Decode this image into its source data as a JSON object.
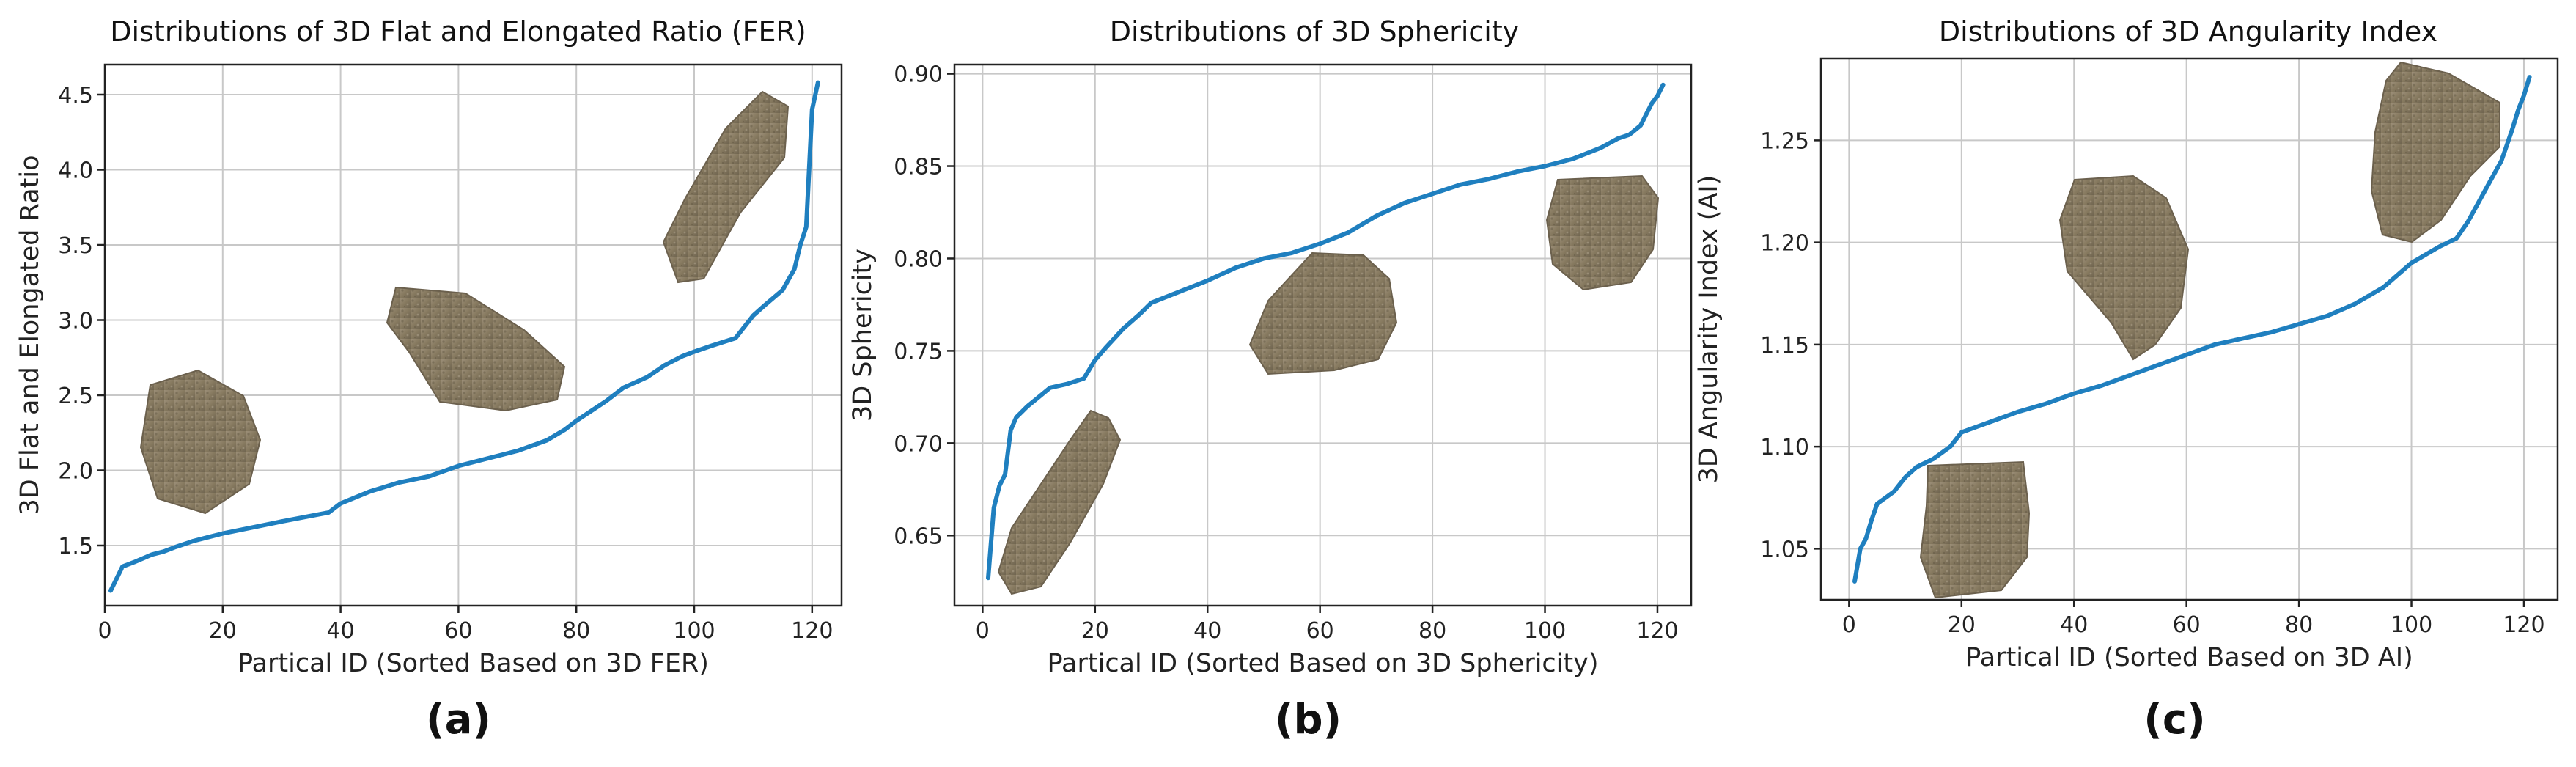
{
  "chart_data": [
    {
      "type": "line",
      "title": "Distributions of 3D Flat and Elongated Ratio (FER)",
      "xlabel": "Partical ID (Sorted Based on 3D FER)",
      "ylabel": "3D Flat and Elongated Ratio",
      "caption": "(a)",
      "xlim": [
        0,
        125
      ],
      "ylim": [
        1.1,
        4.7
      ],
      "xticks": [
        0,
        20,
        40,
        60,
        80,
        100,
        120
      ],
      "yticks": [
        1.5,
        2.0,
        2.5,
        3.0,
        3.5,
        4.0,
        4.5
      ],
      "ytick_labels": [
        "1.5",
        "2.0",
        "2.5",
        "3.0",
        "3.5",
        "4.0",
        "4.5"
      ],
      "grid": true,
      "color": "#1f7fbf",
      "series": [
        {
          "name": "3D FER",
          "x": [
            1,
            2,
            3,
            5,
            8,
            10,
            12,
            15,
            18,
            20,
            25,
            30,
            38,
            40,
            45,
            50,
            55,
            60,
            65,
            70,
            75,
            78,
            80,
            85,
            88,
            92,
            95,
            98,
            100,
            103,
            107,
            110,
            112,
            115,
            117,
            118,
            119,
            120,
            121
          ],
          "y": [
            1.2,
            1.28,
            1.36,
            1.39,
            1.44,
            1.46,
            1.49,
            1.53,
            1.56,
            1.58,
            1.62,
            1.66,
            1.72,
            1.78,
            1.86,
            1.92,
            1.96,
            2.03,
            2.08,
            2.13,
            2.2,
            2.27,
            2.33,
            2.46,
            2.55,
            2.62,
            2.7,
            2.76,
            2.79,
            2.83,
            2.88,
            3.03,
            3.1,
            3.2,
            3.34,
            3.5,
            3.62,
            4.4,
            4.58
          ]
        }
      ]
    },
    {
      "type": "line",
      "title": "Distributions of 3D Sphericity",
      "xlabel": "Partical ID (Sorted Based on 3D Sphericity)",
      "ylabel": "3D Sphericity",
      "caption": "(b)",
      "xlim": [
        -5,
        126
      ],
      "ylim": [
        0.612,
        0.905
      ],
      "xticks": [
        0,
        20,
        40,
        60,
        80,
        100,
        120
      ],
      "yticks": [
        0.65,
        0.7,
        0.75,
        0.8,
        0.85,
        0.9
      ],
      "ytick_labels": [
        "0.65",
        "0.70",
        "0.75",
        "0.80",
        "0.85",
        "0.90"
      ],
      "grid": true,
      "color": "#1f7fbf",
      "series": [
        {
          "name": "3D Sphericity",
          "x": [
            1,
            2,
            3,
            4,
            5,
            6,
            8,
            10,
            12,
            15,
            18,
            20,
            22,
            25,
            28,
            30,
            35,
            40,
            45,
            50,
            55,
            60,
            65,
            70,
            75,
            80,
            85,
            90,
            95,
            100,
            105,
            110,
            113,
            115,
            117,
            118,
            119,
            120,
            121
          ],
          "y": [
            0.627,
            0.665,
            0.677,
            0.683,
            0.707,
            0.714,
            0.72,
            0.725,
            0.73,
            0.732,
            0.735,
            0.745,
            0.752,
            0.762,
            0.77,
            0.776,
            0.782,
            0.788,
            0.795,
            0.8,
            0.803,
            0.808,
            0.814,
            0.823,
            0.83,
            0.835,
            0.84,
            0.843,
            0.847,
            0.85,
            0.854,
            0.86,
            0.865,
            0.867,
            0.872,
            0.878,
            0.884,
            0.888,
            0.894
          ]
        }
      ]
    },
    {
      "type": "line",
      "title": "Distributions of 3D Angularity Index",
      "xlabel": "Partical ID (Sorted Based on 3D AI)",
      "ylabel": "3D Angularity Index (AI)",
      "caption": "(c)",
      "xlim": [
        -5,
        126
      ],
      "ylim": [
        1.025,
        1.29
      ],
      "xticks": [
        0,
        20,
        40,
        60,
        80,
        100,
        120
      ],
      "yticks": [
        1.05,
        1.1,
        1.15,
        1.2,
        1.25
      ],
      "ytick_labels": [
        "1.05",
        "1.10",
        "1.15",
        "1.20",
        "1.25"
      ],
      "grid": true,
      "color": "#1f7fbf",
      "series": [
        {
          "name": "3D AI",
          "x": [
            1,
            2,
            3,
            4,
            5,
            6,
            8,
            10,
            12,
            15,
            18,
            20,
            25,
            30,
            35,
            40,
            45,
            50,
            55,
            60,
            65,
            70,
            75,
            80,
            85,
            90,
            95,
            100,
            105,
            108,
            110,
            112,
            114,
            116,
            117,
            118,
            119,
            120,
            121
          ],
          "y": [
            1.034,
            1.05,
            1.055,
            1.064,
            1.072,
            1.074,
            1.078,
            1.085,
            1.09,
            1.094,
            1.1,
            1.107,
            1.112,
            1.117,
            1.121,
            1.126,
            1.13,
            1.135,
            1.14,
            1.145,
            1.15,
            1.153,
            1.156,
            1.16,
            1.164,
            1.17,
            1.178,
            1.19,
            1.198,
            1.202,
            1.21,
            1.22,
            1.23,
            1.24,
            1.248,
            1.256,
            1.265,
            1.272,
            1.281
          ]
        }
      ]
    }
  ]
}
